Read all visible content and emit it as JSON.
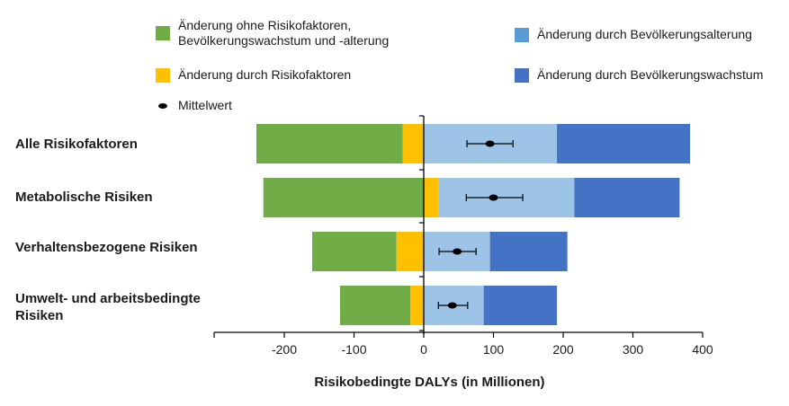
{
  "legend": {
    "items": [
      {
        "label": "Änderung ohne Risikofaktoren,\nBevölkerungswachstum und -alterung",
        "color": "#70AD47",
        "kind": "box"
      },
      {
        "label": "Änderung durch Risikofaktoren",
        "color": "#FFC000",
        "kind": "box"
      },
      {
        "label": "Mittelwert",
        "color": "#000000",
        "kind": "dot"
      },
      {
        "label": "Änderung durch Bevölkerungsalterung",
        "color": "#5B9BD5",
        "kind": "box"
      },
      {
        "label": "Änderung durch Bevölkerungswachstum",
        "color": "#4472C4",
        "kind": "box"
      }
    ]
  },
  "categories": [
    "Alle Risikofaktoren",
    "Metabolische Risiken",
    "Verhaltensbezogene Risiken",
    "Umwelt- und arbeitsbedingte\nRisiken"
  ],
  "axis": {
    "title": "Risikobedingte DALYs (in Millionen)",
    "ticks": [
      "-200",
      "-100",
      "0",
      "100",
      "200",
      "300",
      "400"
    ]
  },
  "colors": {
    "green": "#70AD47",
    "yellow": "#FFC000",
    "light_blue": "#9DC3E6",
    "dark_blue": "#4472C4"
  },
  "chart_data": {
    "type": "bar",
    "orientation": "horizontal",
    "stacked": true,
    "title": "",
    "xlabel": "Risikobedingte DALYs (in Millionen)",
    "ylabel": "",
    "xlim": [
      -300,
      400
    ],
    "xticks": [
      -200,
      -100,
      0,
      100,
      200,
      300,
      400
    ],
    "grid": false,
    "legend_position": "top",
    "categories": [
      "Alle Risikofaktoren",
      "Metabolische Risiken",
      "Verhaltensbezogene Risiken",
      "Umwelt- und arbeitsbedingte Risiken"
    ],
    "series": [
      {
        "name": "Änderung ohne Risikofaktoren, Bevölkerungswachstum und -alterung",
        "color": "#70AD47",
        "values": [
          -210,
          -230,
          -121,
          -101
        ]
      },
      {
        "name": "Änderung durch Risikofaktoren",
        "color": "#FFC000",
        "values": [
          -30,
          21,
          -39,
          -19
        ]
      },
      {
        "name": "Änderung durch Bevölkerungsalterung",
        "color": "#9DC3E6",
        "values": [
          191,
          195,
          95,
          86
        ]
      },
      {
        "name": "Änderung durch Bevölkerungswachstum",
        "color": "#4472C4",
        "values": [
          191,
          151,
          111,
          105
        ]
      }
    ],
    "segments": [
      {
        "green": [
          -240,
          -30
        ],
        "yellow": [
          -30,
          0
        ],
        "light_blue": [
          0,
          191
        ],
        "dark_blue": [
          191,
          382
        ]
      },
      {
        "green": [
          -230,
          0
        ],
        "yellow": [
          0,
          21
        ],
        "light_blue": [
          21,
          216
        ],
        "dark_blue": [
          216,
          367
        ]
      },
      {
        "green": [
          -160,
          -39
        ],
        "yellow": [
          -39,
          0
        ],
        "light_blue": [
          0,
          95
        ],
        "dark_blue": [
          95,
          206
        ]
      },
      {
        "green": [
          -120,
          -19
        ],
        "yellow": [
          -19,
          0
        ],
        "light_blue": [
          0,
          86
        ],
        "dark_blue": [
          86,
          191
        ]
      }
    ],
    "mean": {
      "name": "Mittelwert",
      "values": [
        95,
        100,
        48,
        41
      ],
      "error_low": [
        62,
        61,
        22,
        21
      ],
      "error_high": [
        128,
        142,
        75,
        63
      ]
    }
  }
}
